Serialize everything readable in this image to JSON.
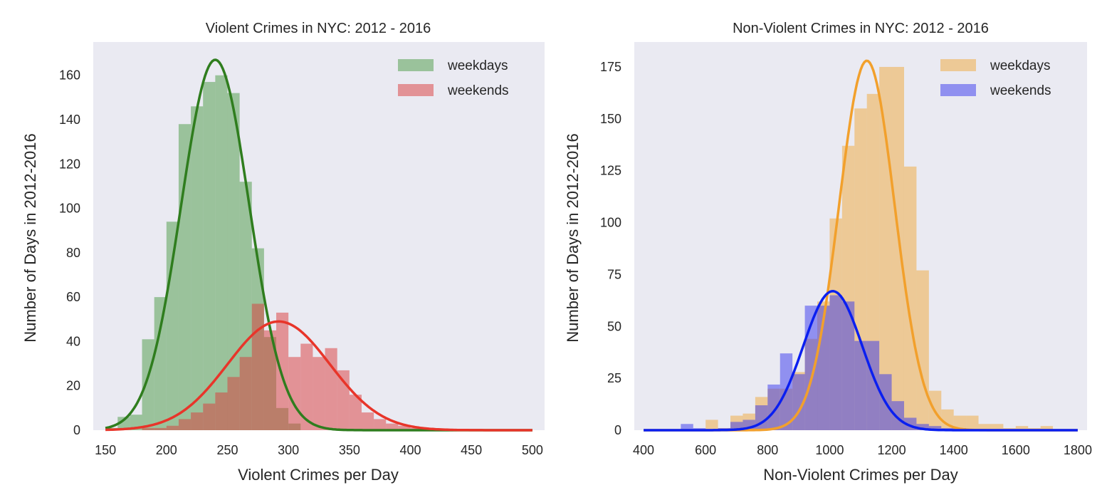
{
  "chart_data": [
    {
      "id": "violent",
      "type": "bar",
      "title": "Violent Crimes in NYC: 2012 - 2016",
      "xlabel": "Violent Crimes per Day",
      "ylabel": "Number of Days in 2012-2016",
      "xlim": [
        140,
        510
      ],
      "ylim": [
        0,
        175
      ],
      "xticks": [
        150,
        200,
        250,
        300,
        350,
        400,
        450,
        500
      ],
      "yticks": [
        0,
        20,
        40,
        60,
        80,
        100,
        120,
        140,
        160
      ],
      "grid": false,
      "background": "#eaeaf2",
      "legend_position": "top-right",
      "bin_width": 10,
      "series": [
        {
          "name": "weekdays",
          "color": "#4a9a44",
          "alpha": 0.5,
          "bin_starts": [
            150,
            160,
            170,
            180,
            190,
            200,
            210,
            220,
            230,
            240,
            250,
            260,
            270,
            280,
            290,
            300
          ],
          "counts": [
            1,
            6,
            7,
            41,
            60,
            94,
            138,
            146,
            157,
            160,
            152,
            112,
            82,
            42,
            10,
            3
          ]
        },
        {
          "name": "weekends",
          "color": "#d93a3a",
          "alpha": 0.5,
          "bin_starts": [
            180,
            190,
            200,
            210,
            220,
            230,
            240,
            250,
            260,
            270,
            280,
            290,
            300,
            310,
            320,
            330,
            340,
            350,
            360,
            370,
            380,
            390,
            400
          ],
          "counts": [
            1,
            1,
            2,
            5,
            8,
            12,
            17,
            24,
            33,
            57,
            45,
            53,
            33,
            39,
            33,
            37,
            27,
            16,
            8,
            5,
            3,
            2,
            1
          ]
        }
      ],
      "fits": [
        {
          "name": "weekdays fit",
          "color": "#2f7d1e",
          "x_range": [
            150,
            500
          ],
          "mean": 240,
          "sd": 28,
          "peak": 167
        },
        {
          "name": "weekends fit",
          "color": "#e8352a",
          "x_range": [
            150,
            500
          ],
          "mean": 292,
          "sd": 42,
          "peak": 49
        }
      ]
    },
    {
      "id": "nonviolent",
      "type": "bar",
      "title": "Non-Violent Crimes in NYC: 2012 - 2016",
      "xlabel": "Non-Violent Crimes per Day",
      "ylabel": "Number of Days in 2012-2016",
      "xlim": [
        370,
        1830
      ],
      "ylim": [
        0,
        187
      ],
      "xticks": [
        400,
        600,
        800,
        1000,
        1200,
        1400,
        1600,
        1800
      ],
      "yticks": [
        0,
        25,
        50,
        75,
        100,
        125,
        150,
        175
      ],
      "grid": false,
      "background": "#eaeaf2",
      "legend_position": "top-right",
      "bin_width": 40,
      "series": [
        {
          "name": "weekdays",
          "color": "#f0a83a",
          "alpha": 0.5,
          "bin_starts": [
            600,
            640,
            680,
            720,
            760,
            800,
            840,
            880,
            920,
            960,
            1000,
            1040,
            1080,
            1120,
            1160,
            1200,
            1240,
            1280,
            1320,
            1360,
            1400,
            1440,
            1480,
            1520,
            1560,
            1600,
            1640,
            1680
          ],
          "counts": [
            5,
            1,
            7,
            8,
            16,
            20,
            20,
            28,
            44,
            62,
            102,
            137,
            155,
            162,
            175,
            175,
            127,
            77,
            19,
            10,
            7,
            7,
            3,
            3,
            1,
            2,
            1,
            2
          ]
        },
        {
          "name": "weekends",
          "color": "#3535ee",
          "alpha": 0.5,
          "bin_starts": [
            520,
            560,
            640,
            680,
            720,
            760,
            800,
            840,
            880,
            920,
            960,
            1000,
            1040,
            1080,
            1120,
            1160,
            1200,
            1240,
            1280,
            1320,
            1360,
            1400
          ],
          "counts": [
            3,
            1,
            1,
            4,
            5,
            12,
            22,
            37,
            27,
            60,
            60,
            65,
            62,
            43,
            43,
            27,
            14,
            6,
            3,
            2,
            1,
            1
          ]
        }
      ],
      "fits": [
        {
          "name": "weekdays fit",
          "color": "#f2a02c",
          "x_range": [
            400,
            1800
          ],
          "mean": 1120,
          "sd": 90,
          "peak": 178
        },
        {
          "name": "weekends fit",
          "color": "#0a1ff0",
          "x_range": [
            400,
            1800
          ],
          "mean": 1010,
          "sd": 95,
          "peak": 67
        }
      ]
    }
  ]
}
